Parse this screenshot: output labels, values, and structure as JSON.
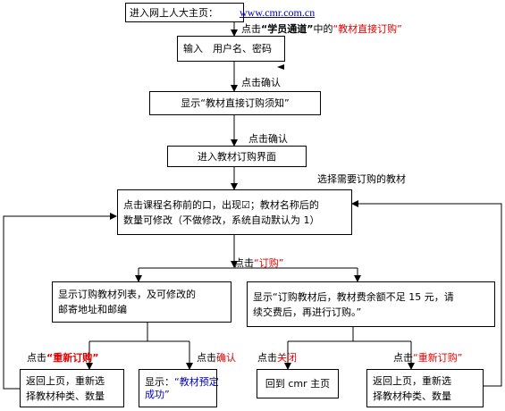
{
  "nodes": [
    {
      "text": "进入网上人大主页：",
      "link": "www.cmr.com.cn"
    },
    {
      "lines": [
        "输入　用户名、密码"
      ]
    },
    {
      "lines": [
        "显示“教材直接订购须知”"
      ]
    },
    {
      "lines": [
        "进入教材订购界面"
      ]
    },
    {
      "lines": [
        "点击课程名称前的口，出现☑；教材名称后的",
        "数量可修改（不做修改，系统自动默认为 1）"
      ]
    },
    {
      "lines": [
        "显示订购教材列表，及可修改的",
        "邮寄地址和邮编"
      ]
    },
    {
      "lines": [
        "显示“订购教材后，教材费余额不足 15 元，请",
        "续交费后，再进行订购。”"
      ]
    },
    {
      "lines": [
        "返回上页，重新选",
        "择教材种类、数量"
      ]
    },
    {
      "lines": [
        "显示：",
        "“教材预定",
        "成功”"
      ]
    },
    {
      "lines": [
        "回到 cmr 主页"
      ]
    },
    {
      "lines": [
        "返回上页，重新选",
        "择教材种类、数量"
      ]
    }
  ],
  "edge_labels": [
    {
      "parts": [
        "点击",
        "“学员通道”",
        "中的",
        "“教材直接订购”"
      ]
    },
    {
      "parts": [
        "点击确认"
      ]
    },
    {
      "parts": [
        "点击确认"
      ]
    },
    {
      "parts": [
        "选择需要订购的教材"
      ]
    },
    {
      "parts": [
        "点击",
        "“订购”"
      ]
    },
    {
      "parts": [
        "点击",
        "“重新订购”"
      ]
    },
    {
      "parts": [
        "点击",
        "确认"
      ]
    },
    {
      "parts": [
        "点击",
        "关闭"
      ]
    },
    {
      "parts": [
        "点击",
        "“重新订购”"
      ]
    }
  ]
}
